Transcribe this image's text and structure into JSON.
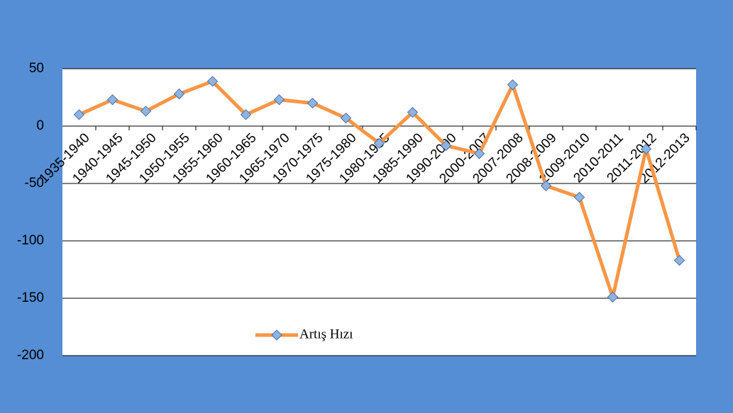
{
  "chart_data": {
    "type": "line",
    "categories": [
      "1935-1940",
      "1940-1945",
      "1945-1950",
      "1950-1955",
      "1955-1960",
      "1960-1965",
      "1965-1970",
      "1970-1975",
      "1975-1980",
      "1980-1985",
      "1985-1990",
      "1990-2000",
      "2000-2007",
      "2007-2008",
      "2008-2009",
      "2009-2010",
      "2010-2011",
      "2011-2012",
      "2012-2013"
    ],
    "series": [
      {
        "name": "Artış Hızı",
        "color": "#f79646",
        "marker_color": "#8eb4e3",
        "values": [
          10,
          23,
          13,
          28,
          39,
          10,
          23,
          20,
          7,
          -15,
          12,
          -17,
          -24,
          36,
          -52,
          -62,
          -149,
          -20,
          -117
        ]
      }
    ],
    "ylim": [
      -200,
      50
    ],
    "yticks": [
      -200,
      -150,
      -100,
      -50,
      0,
      50
    ],
    "grid": true,
    "legend": "bottom"
  }
}
